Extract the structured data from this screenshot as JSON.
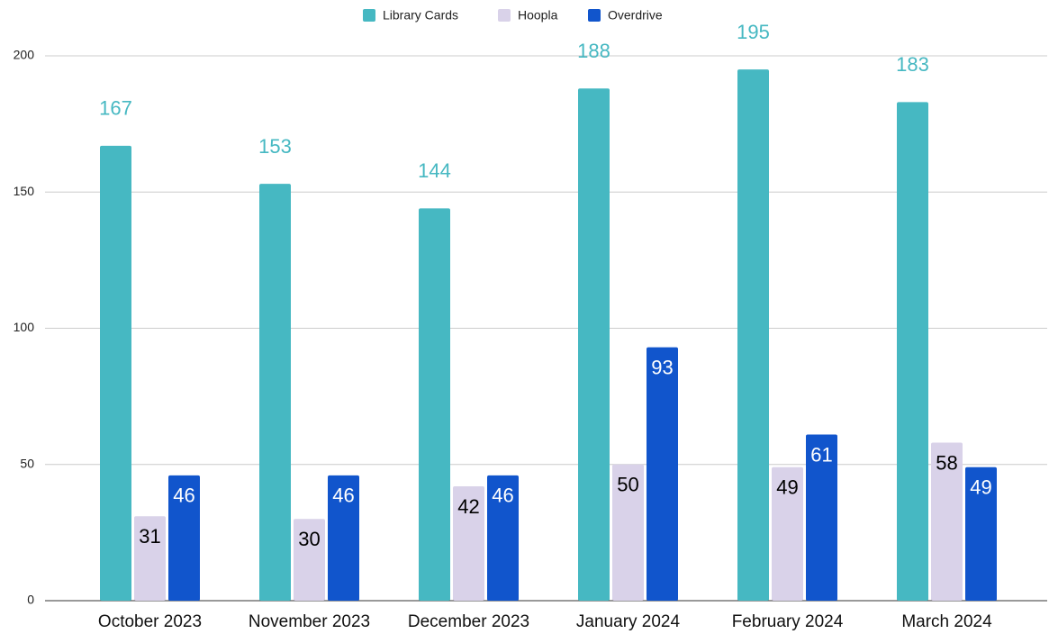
{
  "chart_data": {
    "type": "bar",
    "categories": [
      "October 2023",
      "November 2023",
      "December 2023",
      "January 2024",
      "February 2024",
      "March 2024"
    ],
    "series": [
      {
        "name": "Library Cards",
        "color": "#46b8c2",
        "values": [
          167,
          153,
          144,
          188,
          195,
          183
        ]
      },
      {
        "name": "Hoopla",
        "color": "#d9d2e9",
        "values": [
          31,
          30,
          42,
          50,
          49,
          58
        ]
      },
      {
        "name": "Overdrive",
        "color": "#1155cc",
        "values": [
          46,
          46,
          46,
          93,
          61,
          49
        ]
      }
    ],
    "ylim": [
      0,
      200
    ],
    "yticks": [
      0,
      50,
      100,
      150,
      200
    ],
    "grid": true,
    "legend": "top"
  }
}
